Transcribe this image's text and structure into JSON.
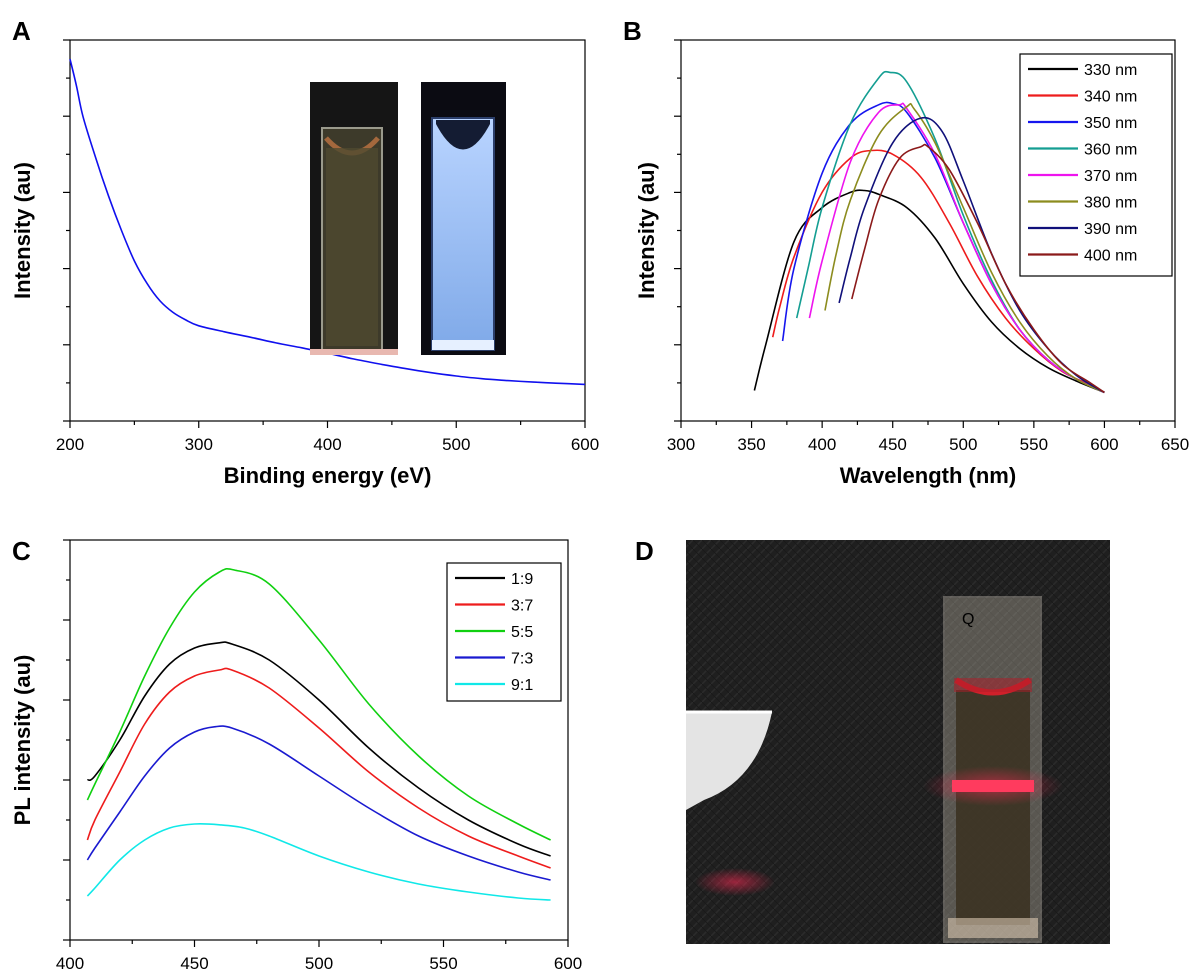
{
  "chart_data": [
    {
      "panel": "A",
      "type": "line",
      "title": "",
      "xlabel": "Binding energy (eV)",
      "ylabel": "Intensity (au)",
      "xlim": [
        200,
        600
      ],
      "xticks": [
        200,
        300,
        400,
        500,
        600
      ],
      "ylim": [
        0,
        100
      ],
      "y_tick_labels": false,
      "legend": null,
      "series": [
        {
          "color": "#1010ee",
          "x": [
            200,
            205,
            210,
            220,
            230,
            240,
            250,
            260,
            270,
            280,
            290,
            300,
            320,
            340,
            360,
            380,
            400,
            420,
            440,
            460,
            480,
            500,
            520,
            540,
            560,
            580,
            600
          ],
          "y": [
            95,
            88,
            80,
            69,
            59,
            50,
            42,
            36,
            31.5,
            28.5,
            26.5,
            25,
            23.4,
            22,
            20.5,
            19.2,
            17.8,
            16.3,
            15,
            13.8,
            12.7,
            11.8,
            11.1,
            10.6,
            10.2,
            9.9,
            9.6
          ]
        }
      ],
      "inset_photos": [
        "cuvette-daylight",
        "cuvette-uv-blue-emission"
      ]
    },
    {
      "panel": "B",
      "type": "line",
      "title": "",
      "xlabel": "Wavelength (nm)",
      "ylabel": "Intensity (au)",
      "xlim": [
        300,
        650
      ],
      "xticks": [
        300,
        350,
        400,
        450,
        500,
        550,
        600,
        650
      ],
      "ylim": [
        0,
        100
      ],
      "y_tick_labels": false,
      "legend": "top-right",
      "series": [
        {
          "name": "330 nm",
          "color": "#000000",
          "x": [
            352,
            360,
            380,
            400,
            420,
            430,
            440,
            460,
            480,
            500,
            520,
            540,
            560,
            580,
            600
          ],
          "y": [
            8,
            20,
            47,
            56,
            60,
            60.5,
            59.5,
            56,
            48,
            36,
            26,
            19,
            14,
            10.5,
            7.5
          ]
        },
        {
          "name": "340 nm",
          "color": "#ee1c1c",
          "x": [
            365,
            370,
            380,
            400,
            420,
            435,
            450,
            470,
            490,
            510,
            530,
            550,
            570,
            590,
            600
          ],
          "y": [
            22,
            30,
            43,
            60,
            69,
            71,
            70,
            64,
            52,
            38,
            27,
            19,
            13,
            9.5,
            7.5
          ]
        },
        {
          "name": "350 nm",
          "color": "#1616ee",
          "x": [
            372,
            380,
            400,
            420,
            440,
            450,
            460,
            480,
            500,
            520,
            540,
            560,
            580,
            600
          ],
          "y": [
            21,
            40,
            65,
            78,
            83,
            83.3,
            81,
            69,
            52,
            36,
            24,
            16,
            11,
            7.5
          ]
        },
        {
          "name": "360 nm",
          "color": "#149e92",
          "x": [
            382,
            390,
            400,
            420,
            440,
            448,
            460,
            480,
            500,
            520,
            540,
            560,
            580,
            600
          ],
          "y": [
            27,
            40,
            56,
            78,
            90,
            91.5,
            89,
            74,
            54,
            37,
            24,
            16,
            11,
            7.5
          ]
        },
        {
          "name": "370 nm",
          "color": "#ee14ee",
          "x": [
            391,
            400,
            420,
            440,
            455,
            460,
            480,
            500,
            520,
            540,
            560,
            580,
            600
          ],
          "y": [
            27,
            42,
            68,
            81,
            83,
            82,
            70,
            52,
            36,
            24,
            16,
            11,
            7.5
          ]
        },
        {
          "name": "380 nm",
          "color": "#8c8c1e",
          "x": [
            402,
            410,
            420,
            440,
            460,
            465,
            480,
            500,
            520,
            540,
            560,
            580,
            600
          ],
          "y": [
            29,
            44,
            58,
            75,
            82.5,
            82,
            73,
            56,
            39,
            26,
            17,
            11,
            7.5
          ]
        },
        {
          "name": "390 nm",
          "color": "#10107a",
          "x": [
            412,
            420,
            430,
            450,
            470,
            485,
            500,
            520,
            540,
            560,
            580,
            600
          ],
          "y": [
            31,
            43,
            56,
            73,
            79.5,
            76,
            63,
            44,
            29,
            19,
            12,
            7.5
          ]
        },
        {
          "name": "400 nm",
          "color": "#8b1a1a",
          "x": [
            421,
            430,
            440,
            455,
            470,
            475,
            490,
            510,
            530,
            550,
            570,
            590,
            600
          ],
          "y": [
            32,
            45,
            58,
            69,
            72,
            72,
            66,
            52,
            36,
            24,
            15,
            10,
            7.5
          ]
        }
      ]
    },
    {
      "panel": "C",
      "type": "line",
      "title": "",
      "xlabel": "Wavelength (nm)",
      "ylabel": "PL intensity (au)",
      "xlim": [
        400,
        600
      ],
      "xticks": [
        400,
        450,
        500,
        550,
        600
      ],
      "ylim": [
        0,
        100
      ],
      "y_tick_labels": false,
      "legend": "top-right",
      "series": [
        {
          "name": "1:9",
          "color": "#000000",
          "x": [
            407,
            410,
            420,
            430,
            440,
            450,
            460,
            465,
            480,
            500,
            520,
            540,
            560,
            580,
            593
          ],
          "y": [
            40,
            41,
            50,
            61,
            69,
            73,
            74.3,
            74,
            70,
            60,
            48,
            38,
            30,
            24,
            21
          ]
        },
        {
          "name": "3:7",
          "color": "#ee1c1c",
          "x": [
            407,
            410,
            420,
            430,
            440,
            450,
            460,
            465,
            480,
            500,
            520,
            540,
            560,
            580,
            593
          ],
          "y": [
            25,
            30,
            42,
            54,
            62,
            66,
            67.5,
            67.5,
            63,
            53,
            42,
            33,
            26,
            21,
            18
          ]
        },
        {
          "name": "5:5",
          "color": "#10d010",
          "x": [
            407,
            410,
            420,
            430,
            440,
            450,
            460,
            466,
            480,
            500,
            520,
            540,
            560,
            580,
            593
          ],
          "y": [
            35,
            39,
            52,
            66,
            78,
            87,
            92,
            92.5,
            89,
            75,
            59,
            46,
            36,
            29,
            25
          ]
        },
        {
          "name": "7:3",
          "color": "#1a1ad0",
          "x": [
            407,
            410,
            420,
            430,
            440,
            450,
            458,
            465,
            480,
            500,
            520,
            540,
            560,
            580,
            593
          ],
          "y": [
            20,
            23,
            32,
            41,
            48,
            52,
            53.3,
            53,
            49,
            41,
            33,
            26,
            21,
            17,
            15
          ]
        },
        {
          "name": "9:1",
          "color": "#10e8e8",
          "x": [
            407,
            410,
            420,
            430,
            440,
            450,
            460,
            470,
            480,
            500,
            520,
            540,
            560,
            580,
            593
          ],
          "y": [
            11,
            13,
            20,
            25,
            28,
            29,
            28.8,
            28,
            26,
            21,
            17,
            14,
            12,
            10.5,
            10
          ]
        }
      ]
    }
  ],
  "panels": {
    "a": {
      "letter": "A"
    },
    "b": {
      "letter": "B"
    },
    "c": {
      "letter": "C"
    },
    "d": {
      "letter": "D",
      "photo_label": "Q"
    }
  }
}
